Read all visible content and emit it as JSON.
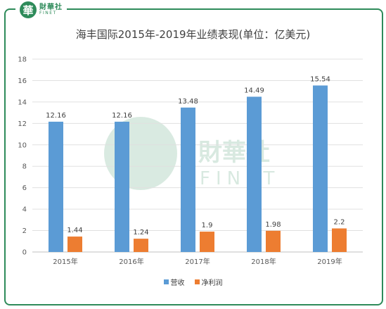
{
  "brand": {
    "mark": "華",
    "name_cn": "財華社",
    "name_en": "FINET"
  },
  "chart_data": {
    "type": "bar",
    "title": "海丰国际2015年-2019年业绩表现(单位：亿美元)",
    "categories": [
      "2015年",
      "2016年",
      "2017年",
      "2018年",
      "2019年"
    ],
    "series": [
      {
        "name": "营收",
        "values": [
          12.16,
          12.16,
          13.48,
          14.49,
          15.54
        ],
        "labels": [
          "12.16",
          "12.16",
          "13.48",
          "14.49",
          "15.54"
        ],
        "color": "#5b9bd5"
      },
      {
        "name": "净利润",
        "values": [
          1.44,
          1.24,
          1.9,
          1.98,
          2.2
        ],
        "labels": [
          "1.44",
          "1.24",
          "1.9",
          "1.98",
          "2.2"
        ],
        "color": "#ed7d31"
      }
    ],
    "ylim": [
      0,
      18
    ],
    "yticks": [
      0,
      2,
      4,
      6,
      8,
      10,
      12,
      14,
      16,
      18
    ],
    "grid": true,
    "legend_position": "bottom",
    "watermark": {
      "cn": "財華社",
      "en": "FINET"
    }
  }
}
